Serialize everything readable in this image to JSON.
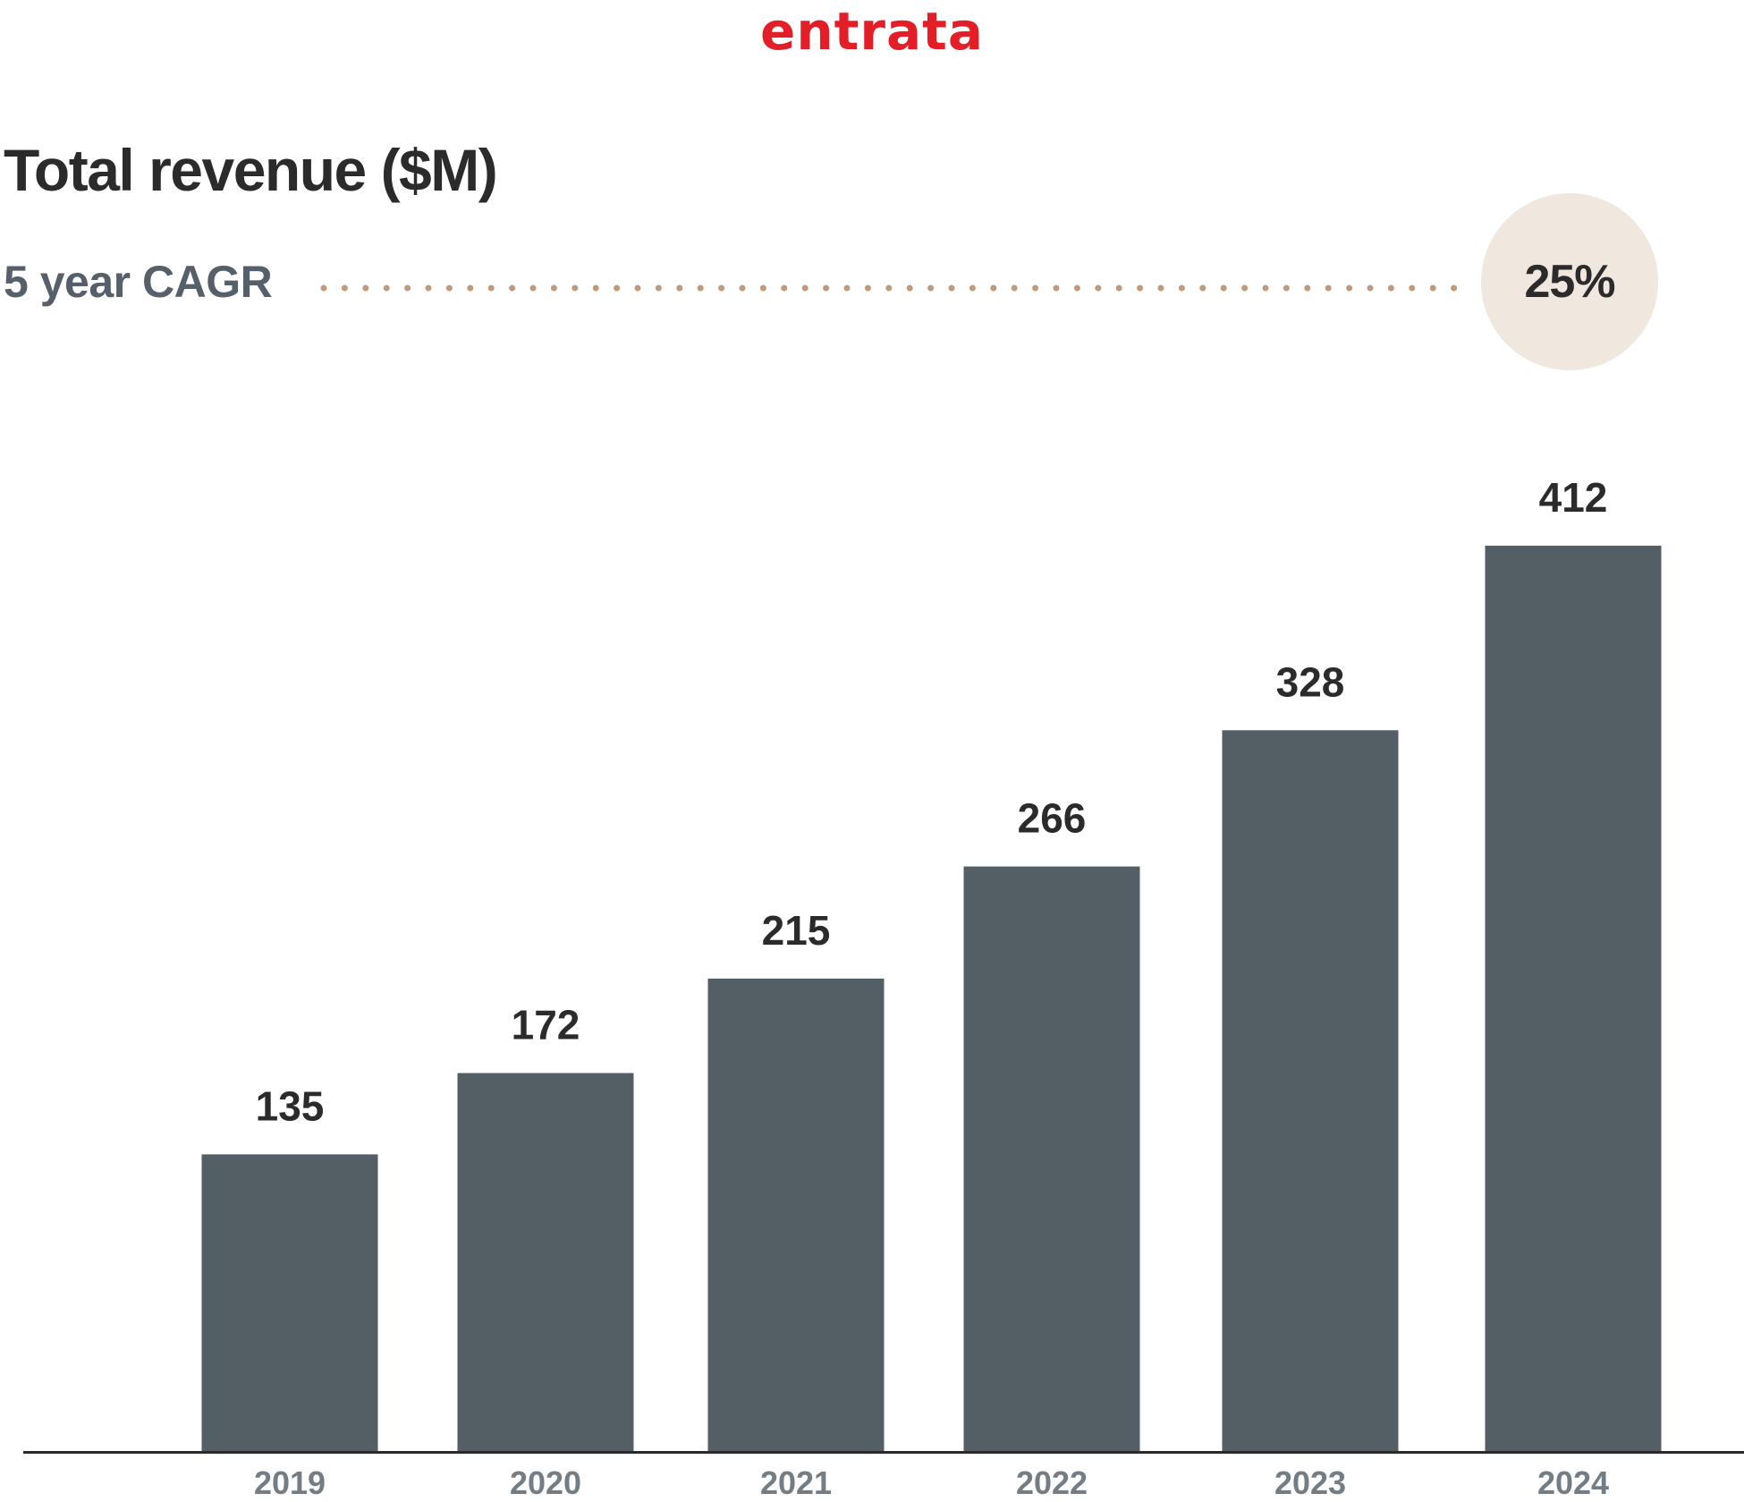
{
  "brand": {
    "logo_text": "entrata",
    "color": "#e31e26"
  },
  "header": {
    "title": "Total revenue ($M)",
    "cagr_label": "5 year CAGR",
    "cagr_value": "25%"
  },
  "colors": {
    "bar": "#545e65",
    "value_label": "#2b2b2b",
    "tick_label": "#737d85",
    "axis": "#2b2b2b",
    "dots": "#c19a79",
    "bubble": "#f0e7de"
  },
  "chart_data": {
    "type": "bar",
    "title": "Total revenue ($M)",
    "categories": [
      "2019",
      "2020",
      "2021",
      "2022",
      "2023",
      "2024"
    ],
    "values": [
      135,
      172,
      215,
      266,
      328,
      412
    ],
    "data_labels": [
      "135",
      "172",
      "215",
      "266",
      "328",
      "412"
    ],
    "xlabel": "",
    "ylabel": "",
    "ylim": [
      0,
      412
    ],
    "grid": false,
    "legend": "none"
  }
}
